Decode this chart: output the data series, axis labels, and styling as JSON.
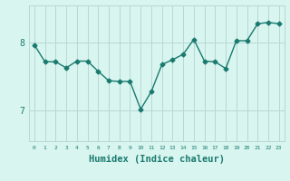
{
  "x": [
    0,
    1,
    2,
    3,
    4,
    5,
    6,
    7,
    8,
    9,
    10,
    11,
    12,
    13,
    14,
    15,
    16,
    17,
    18,
    19,
    20,
    21,
    22,
    23
  ],
  "y": [
    7.97,
    7.72,
    7.72,
    7.63,
    7.73,
    7.73,
    7.58,
    7.44,
    7.43,
    7.43,
    7.02,
    7.28,
    7.68,
    7.75,
    7.83,
    8.05,
    7.73,
    7.72,
    7.62,
    8.03,
    8.03,
    8.28,
    8.3,
    8.28
  ],
  "line_color": "#1a7a6e",
  "marker": "D",
  "markersize": 2.5,
  "linewidth": 1.0,
  "xlabel": "Humidex (Indice chaleur)",
  "xlabel_fontsize": 7.5,
  "bg_color": "#d8f5f0",
  "grid_color": "#b8d8d4",
  "tick_color": "#1a7a6e",
  "ytick_labels": [
    "7",
    "8"
  ],
  "ytick_values": [
    7.0,
    8.0
  ],
  "ylim": [
    6.55,
    8.55
  ],
  "xlim": [
    -0.5,
    23.5
  ]
}
